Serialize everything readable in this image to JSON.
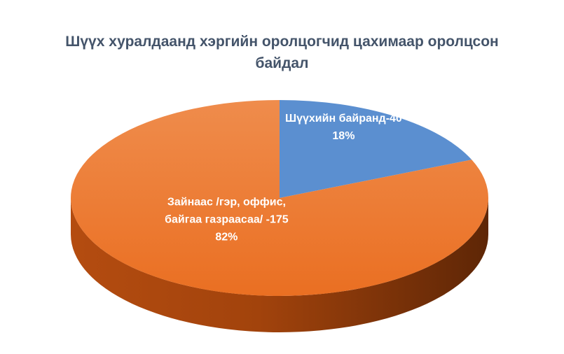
{
  "chart_data": {
    "type": "pie",
    "title_lines": [
      "Шүүх хуралдаанд хэргийн оролцогчид цахимаар оролцсон",
      "байдал"
    ],
    "slices": [
      {
        "label_lines": [
          "Шүүхийн байранд-40"
        ],
        "value": 40,
        "percent_label": "18%",
        "color": "#5b8fd0"
      },
      {
        "label_lines": [
          "Зайнаас /гэр, оффис,",
          "байгаа газраасаа/ -175"
        ],
        "value": 175,
        "percent_label": "82%",
        "color": "#ee7a2e"
      }
    ],
    "legend": "none",
    "style": "3d"
  }
}
